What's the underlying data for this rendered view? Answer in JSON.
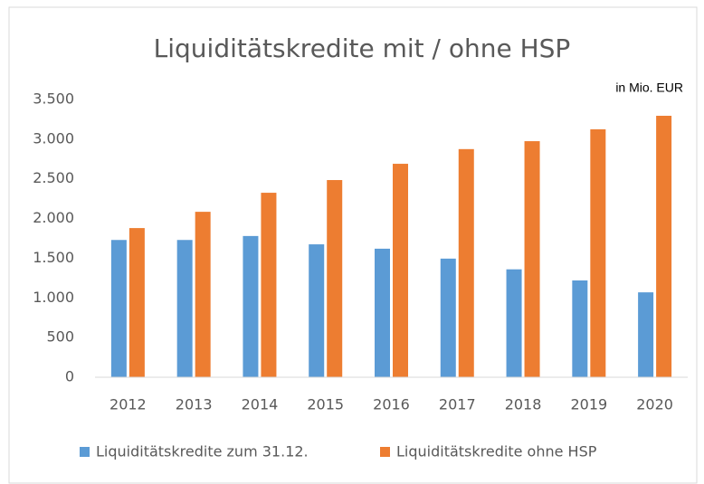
{
  "chart_data": {
    "type": "bar",
    "title": "Liquiditätskredite mit / ohne HSP",
    "annotation": "in Mio. EUR",
    "categories": [
      "2012",
      "2013",
      "2014",
      "2015",
      "2016",
      "2017",
      "2018",
      "2019",
      "2020"
    ],
    "series": [
      {
        "name": "Liquiditätskredite zum 31.12.",
        "color": "#5b9bd5",
        "values": [
          1730,
          1730,
          1780,
          1675,
          1620,
          1495,
          1360,
          1220,
          1070
        ]
      },
      {
        "name": "Liquiditätskredite ohne HSP",
        "color": "#ed7d31",
        "values": [
          1880,
          2085,
          2325,
          2485,
          2690,
          2875,
          2975,
          3125,
          3295
        ]
      }
    ],
    "ylim": [
      0,
      3500
    ],
    "yticks": [
      0,
      500,
      {
        "value": 1000,
        "label": "1.000"
      },
      {
        "value": 1500,
        "label": "1.500"
      },
      {
        "value": 2000,
        "label": "2.000"
      },
      {
        "value": 2500,
        "label": "2.500"
      },
      {
        "value": 3000,
        "label": "3.000"
      },
      {
        "value": 3500,
        "label": "3.500"
      }
    ],
    "grid": false,
    "legend": "bottom"
  }
}
